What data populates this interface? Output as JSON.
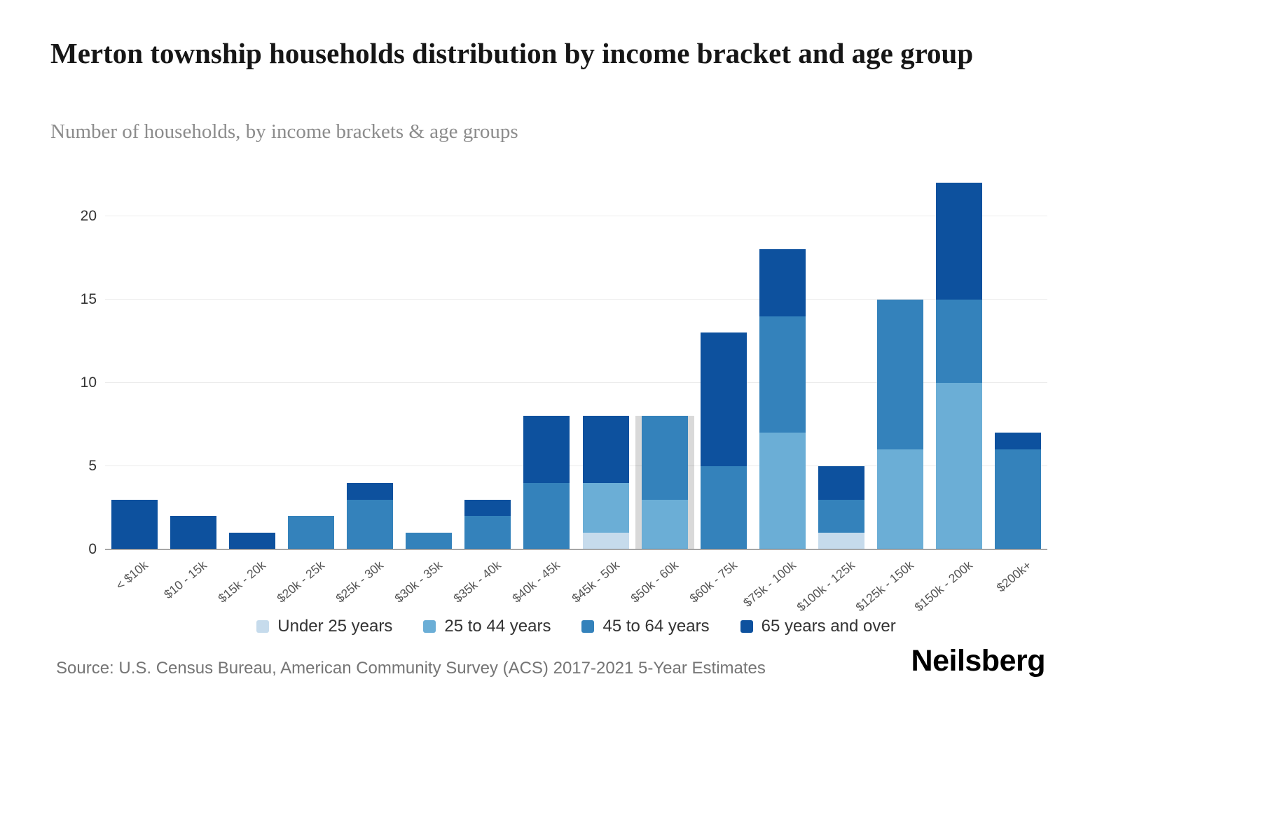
{
  "header": {
    "title": "Merton township households distribution by income bracket and age group",
    "subtitle": "Number of households, by income brackets & age groups"
  },
  "chart_data": {
    "type": "bar",
    "stacked": true,
    "title": "Merton township households distribution by income bracket and age group",
    "subtitle": "Number of households, by income brackets & age groups",
    "categories": [
      "< $10k",
      "$10 - 15k",
      "$15k - 20k",
      "$20k - 25k",
      "$25k - 30k",
      "$30k - 35k",
      "$35k - 40k",
      "$40k - 45k",
      "$45k - 50k",
      "$50k - 60k",
      "$60k - 75k",
      "$75k - 100k",
      "$100k - 125k",
      "$125k - 150k",
      "$150k - 200k",
      "$200k+"
    ],
    "series": [
      {
        "name": "Under 25 years",
        "color": "#c6dbec",
        "values": [
          0,
          0,
          0,
          0,
          0,
          0,
          0,
          0,
          1,
          0,
          0,
          0,
          1,
          0,
          0,
          0
        ]
      },
      {
        "name": "25 to 44 years",
        "color": "#6baed6",
        "values": [
          0,
          0,
          0,
          0,
          0,
          0,
          0,
          0,
          3,
          3,
          0,
          7,
          0,
          6,
          10,
          0
        ]
      },
      {
        "name": "45 to 64 years",
        "color": "#3482bb",
        "values": [
          0,
          0,
          0,
          2,
          3,
          1,
          2,
          4,
          0,
          5,
          5,
          7,
          2,
          9,
          5,
          6
        ]
      },
      {
        "name": "65 years and over",
        "color": "#0d519e",
        "values": [
          3,
          2,
          1,
          0,
          1,
          0,
          1,
          4,
          4,
          0,
          8,
          4,
          2,
          0,
          7,
          1
        ]
      }
    ],
    "xlabel": "",
    "ylabel": "",
    "yticks": [
      0,
      5,
      10,
      15,
      20
    ],
    "ylim": [
      0,
      22
    ],
    "grid": true,
    "legend_position": "bottom",
    "highlighted_category": "$50k - 60k",
    "highlight_color": "rgba(0,0,0,0.15)"
  },
  "footer": {
    "source": "Source: U.S. Census Bureau, American Community Survey (ACS) 2017-2021 5-Year Estimates",
    "brand": "Neilsberg"
  }
}
